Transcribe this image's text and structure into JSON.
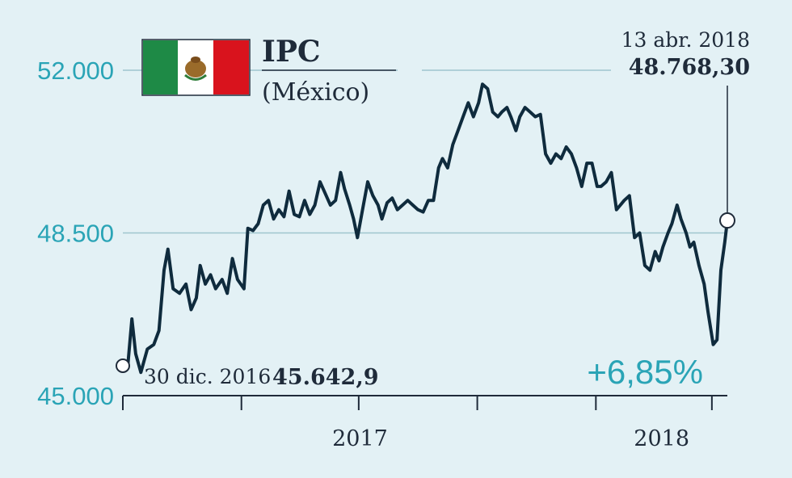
{
  "chart_data": {
    "type": "line",
    "title": "IPC",
    "subtitle": "(México)",
    "x_ticks": [
      "2017",
      "2018"
    ],
    "y_ticks": [
      {
        "value": 45000,
        "label": "45.000"
      },
      {
        "value": 48500,
        "label": "48.500"
      },
      {
        "value": 52000,
        "label": "52.000"
      }
    ],
    "ylim": [
      45000,
      52000
    ],
    "xlim": [
      "2016-12-30",
      "2018-04-13"
    ],
    "grid": "horizontal",
    "start": {
      "date": "2016-12-30",
      "date_label": "30 dic. 2016",
      "value": 45642.9,
      "value_label": "45.642,9"
    },
    "end": {
      "date": "2018-04-13",
      "date_label": "13 abr. 2018",
      "value": 48768.3,
      "value_label": "48.768,30"
    },
    "change_label": "+6,85%",
    "series": [
      {
        "color": "#0f2b3d",
        "points": [
          [
            "2016-12-30",
            45643
          ],
          [
            "2017-01-03",
            45700
          ],
          [
            "2017-01-06",
            46650
          ],
          [
            "2017-01-09",
            45900
          ],
          [
            "2017-01-13",
            45500
          ],
          [
            "2017-01-18",
            46000
          ],
          [
            "2017-01-23",
            46100
          ],
          [
            "2017-01-27",
            46400
          ],
          [
            "2017-01-31",
            47700
          ],
          [
            "2017-02-03",
            48150
          ],
          [
            "2017-02-07",
            47300
          ],
          [
            "2017-02-12",
            47200
          ],
          [
            "2017-02-17",
            47400
          ],
          [
            "2017-02-21",
            46850
          ],
          [
            "2017-02-25",
            47100
          ],
          [
            "2017-02-28",
            47800
          ],
          [
            "2017-03-04",
            47400
          ],
          [
            "2017-03-08",
            47600
          ],
          [
            "2017-03-12",
            47300
          ],
          [
            "2017-03-17",
            47500
          ],
          [
            "2017-03-21",
            47200
          ],
          [
            "2017-03-25",
            47950
          ],
          [
            "2017-03-29",
            47500
          ],
          [
            "2017-04-03",
            47300
          ],
          [
            "2017-04-06",
            48600
          ],
          [
            "2017-04-10",
            48550
          ],
          [
            "2017-04-14",
            48700
          ],
          [
            "2017-04-18",
            49100
          ],
          [
            "2017-04-22",
            49200
          ],
          [
            "2017-04-26",
            48800
          ],
          [
            "2017-04-30",
            49000
          ],
          [
            "2017-05-04",
            48850
          ],
          [
            "2017-05-08",
            49400
          ],
          [
            "2017-05-12",
            48900
          ],
          [
            "2017-05-16",
            48850
          ],
          [
            "2017-05-20",
            49200
          ],
          [
            "2017-05-24",
            48900
          ],
          [
            "2017-05-28",
            49100
          ],
          [
            "2017-06-01",
            49600
          ],
          [
            "2017-06-05",
            49350
          ],
          [
            "2017-06-09",
            49100
          ],
          [
            "2017-06-13",
            49200
          ],
          [
            "2017-06-17",
            49800
          ],
          [
            "2017-06-20",
            49450
          ],
          [
            "2017-06-24",
            49100
          ],
          [
            "2017-06-27",
            48800
          ],
          [
            "2017-06-30",
            48400
          ],
          [
            "2017-07-04",
            49000
          ],
          [
            "2017-07-08",
            49600
          ],
          [
            "2017-07-12",
            49300
          ],
          [
            "2017-07-16",
            49100
          ],
          [
            "2017-07-19",
            48800
          ],
          [
            "2017-07-23",
            49150
          ],
          [
            "2017-07-27",
            49250
          ],
          [
            "2017-07-31",
            49000
          ],
          [
            "2017-08-04",
            49100
          ],
          [
            "2017-08-08",
            49200
          ],
          [
            "2017-08-12",
            49100
          ],
          [
            "2017-08-16",
            49000
          ],
          [
            "2017-08-20",
            48950
          ],
          [
            "2017-08-24",
            49200
          ],
          [
            "2017-08-28",
            49200
          ],
          [
            "2017-09-01",
            49900
          ],
          [
            "2017-09-04",
            50100
          ],
          [
            "2017-09-08",
            49900
          ],
          [
            "2017-09-12",
            50400
          ],
          [
            "2017-09-16",
            50700
          ],
          [
            "2017-09-20",
            51000
          ],
          [
            "2017-09-24",
            51300
          ],
          [
            "2017-09-28",
            51000
          ],
          [
            "2017-10-02",
            51300
          ],
          [
            "2017-10-05",
            51700
          ],
          [
            "2017-10-09",
            51600
          ],
          [
            "2017-10-13",
            51100
          ],
          [
            "2017-10-17",
            51000
          ],
          [
            "2017-10-20",
            51100
          ],
          [
            "2017-10-24",
            51200
          ],
          [
            "2017-10-27",
            51000
          ],
          [
            "2017-10-31",
            50700
          ],
          [
            "2017-11-03",
            51000
          ],
          [
            "2017-11-07",
            51200
          ],
          [
            "2017-11-11",
            51100
          ],
          [
            "2017-11-15",
            51000
          ],
          [
            "2017-11-19",
            51050
          ],
          [
            "2017-11-23",
            50200
          ],
          [
            "2017-11-27",
            50000
          ],
          [
            "2017-12-01",
            50200
          ],
          [
            "2017-12-05",
            50100
          ],
          [
            "2017-12-09",
            50350
          ],
          [
            "2017-12-13",
            50200
          ],
          [
            "2017-12-17",
            49900
          ],
          [
            "2017-12-21",
            49500
          ],
          [
            "2017-12-25",
            50000
          ],
          [
            "2017-12-29",
            50000
          ],
          [
            "2018-01-02",
            49500
          ],
          [
            "2018-01-05",
            49500
          ],
          [
            "2018-01-09",
            49600
          ],
          [
            "2018-01-13",
            49800
          ],
          [
            "2018-01-17",
            49000
          ],
          [
            "2018-01-20",
            49100
          ],
          [
            "2018-01-23",
            49200
          ],
          [
            "2018-01-27",
            49300
          ],
          [
            "2018-01-31",
            48400
          ],
          [
            "2018-02-04",
            48500
          ],
          [
            "2018-02-08",
            47800
          ],
          [
            "2018-02-12",
            47700
          ],
          [
            "2018-02-16",
            48100
          ],
          [
            "2018-02-19",
            47900
          ],
          [
            "2018-02-22",
            48200
          ],
          [
            "2018-02-26",
            48500
          ],
          [
            "2018-03-01",
            48700
          ],
          [
            "2018-03-05",
            49100
          ],
          [
            "2018-03-08",
            48800
          ],
          [
            "2018-03-12",
            48500
          ],
          [
            "2018-03-15",
            48200
          ],
          [
            "2018-03-18",
            48300
          ],
          [
            "2018-03-22",
            47800
          ],
          [
            "2018-03-26",
            47400
          ],
          [
            "2018-03-29",
            46800
          ],
          [
            "2018-04-02",
            46100
          ],
          [
            "2018-04-05",
            46200
          ],
          [
            "2018-04-08",
            47700
          ],
          [
            "2018-04-11",
            48300
          ],
          [
            "2018-04-13",
            48768
          ]
        ]
      }
    ]
  }
}
